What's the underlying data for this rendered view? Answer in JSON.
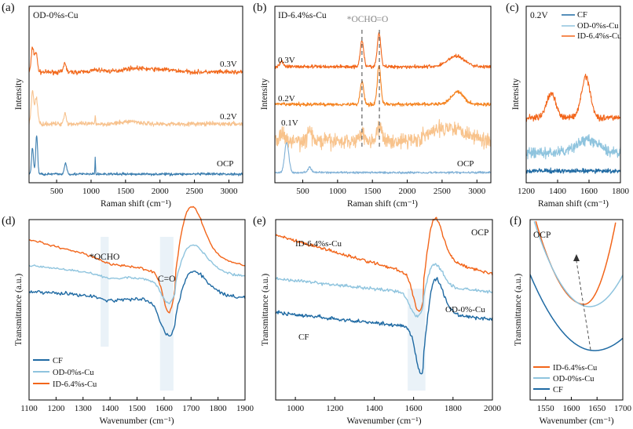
{
  "colors": {
    "cf": "#1f6aa3",
    "od": "#8fc4de",
    "id": "#f2651a",
    "od_a": "#3d7fb0",
    "od_b": "#f7c28e",
    "od_c": "#f26a1e",
    "id_ocp": "#7fb0d6",
    "id_01": "#f8c38c",
    "id_02": "#f5821e",
    "id_03": "#f26518",
    "band": "#dceaf4",
    "dash": "#555555"
  },
  "chart_data": [
    {
      "panel_label": "(a)",
      "type": "line",
      "title": "OD-0%s-Cu",
      "xlabel": "Raman shift (cm⁻¹)",
      "ylabel": "Intensity",
      "xlim": [
        100,
        3200
      ],
      "x_ticks": [
        500,
        1000,
        1500,
        2000,
        2500,
        3000
      ],
      "x_tick_labels": [
        "500",
        "1000",
        "1500",
        "2000",
        "2500",
        "3000"
      ],
      "series": [
        {
          "name": "0.3V",
          "peaks": [
            [
              150,
              0.55,
              18
            ],
            [
              200,
              0.45,
              20
            ],
            [
              620,
              0.22,
              18
            ],
            [
              1100,
              0.05,
              100
            ],
            [
              1600,
              0.08,
              160
            ],
            [
              2000,
              0.06,
              220
            ]
          ],
          "noise": 0.05
        },
        {
          "name": "0.2V",
          "peaks": [
            [
              150,
              0.75,
              18
            ],
            [
              205,
              0.6,
              20
            ],
            [
              620,
              0.25,
              18
            ],
            [
              1060,
              0.2,
              5
            ],
            [
              1580,
              0.06,
              120
            ]
          ],
          "noise": 0.05
        },
        {
          "name": "OCP",
          "peaks": [
            [
              150,
              0.6,
              14
            ],
            [
              210,
              0.9,
              14
            ],
            [
              630,
              0.25,
              18
            ],
            [
              1060,
              0.4,
              4
            ]
          ],
          "noise": 0.03
        }
      ]
    },
    {
      "panel_label": "(b)",
      "type": "line",
      "title": "ID-6.4%s-Cu",
      "xlabel": "Raman shift (cm⁻¹)",
      "ylabel": "Intensity",
      "xlim": [
        100,
        3200
      ],
      "x_ticks": [
        500,
        1000,
        1500,
        2000,
        2500,
        3000
      ],
      "x_tick_labels": [
        "500",
        "1000",
        "1500",
        "2000",
        "2500",
        "3000"
      ],
      "annotations": [
        {
          "text": "*OCHO",
          "x": 1350
        },
        {
          "text": "C=O",
          "x": 1600
        }
      ],
      "series": [
        {
          "name": "0.3V",
          "peaks": [
            [
              1350,
              0.75,
              25
            ],
            [
              1595,
              0.95,
              25
            ],
            [
              2700,
              0.3,
              120
            ],
            [
              200,
              0.15,
              25
            ]
          ],
          "noise": 0.05
        },
        {
          "name": "0.2V",
          "peaks": [
            [
              1350,
              0.65,
              25
            ],
            [
              1595,
              1.1,
              25
            ],
            [
              2720,
              0.35,
              90
            ]
          ],
          "noise": 0.05
        },
        {
          "name": "0.1V",
          "peaks": [
            [
              200,
              0.3,
              25
            ],
            [
              600,
              0.3,
              30
            ],
            [
              1350,
              0.25,
              40
            ],
            [
              1600,
              0.35,
              40
            ],
            [
              2600,
              0.4,
              250
            ]
          ],
          "noise": 0.22
        },
        {
          "name": "OCP",
          "peaks": [
            [
              270,
              0.85,
              30
            ],
            [
              600,
              0.15,
              25
            ]
          ],
          "noise": 0.03
        }
      ]
    },
    {
      "panel_label": "(c)",
      "type": "line",
      "title": "0.2V",
      "xlabel": "Raman shift (cm⁻¹)",
      "ylabel": "Intensity",
      "xlim": [
        1200,
        1800
      ],
      "x_ticks": [
        1200,
        1400,
        1600,
        1800
      ],
      "x_tick_labels": [
        "1200",
        "1400",
        "1600",
        "1800"
      ],
      "legend": [
        "CF",
        "OD-0%s-Cu",
        "ID-6.4%s-Cu"
      ],
      "series": [
        {
          "name": "ID-6.4%s-Cu",
          "peaks": [
            [
              1360,
              0.55,
              30
            ],
            [
              1580,
              0.95,
              28
            ]
          ],
          "noise": 0.07
        },
        {
          "name": "OD-0%s-Cu",
          "peaks": [
            [
              1590,
              0.3,
              70
            ]
          ],
          "noise": 0.12
        },
        {
          "name": "CF",
          "peaks": [],
          "noise": 0.05
        }
      ]
    },
    {
      "panel_label": "(d)",
      "type": "line",
      "xlabel": "Wavenumber (cm⁻¹)",
      "ylabel": "Transmittance (a.u.)",
      "xlim": [
        1100,
        1900
      ],
      "x_ticks": [
        1100,
        1200,
        1300,
        1400,
        1500,
        1600,
        1700,
        1800,
        1900
      ],
      "x_tick_labels": [
        "1100",
        "1200",
        "1300",
        "1400",
        "1500",
        "1600",
        "1700",
        "1800",
        "1900"
      ],
      "annotations": [
        {
          "text": "*OCHO",
          "x": 1390
        },
        {
          "text": "C=O",
          "x": 1605
        }
      ],
      "legend": [
        "CF",
        "OD-0%s-Cu",
        "ID-6.4%s-Cu"
      ],
      "series": [
        {
          "name": "ID-6.4%s-Cu"
        },
        {
          "name": "OD-0%s-Cu"
        },
        {
          "name": "CF"
        }
      ]
    },
    {
      "panel_label": "(e)",
      "type": "line",
      "title": "OCP",
      "xlabel": "Wavenumber (cm⁻¹)",
      "ylabel": "Transmittance (a.u.)",
      "xlim": [
        900,
        2000
      ],
      "x_ticks": [
        1000,
        1200,
        1400,
        1600,
        1800,
        2000
      ],
      "x_tick_labels": [
        "1000",
        "1200",
        "1400",
        "1600",
        "1800",
        "2000"
      ],
      "curve_labels": [
        "ID-6.4%s-Cu",
        "OD-0%-Cu",
        "CF"
      ],
      "series": [
        {
          "name": "ID-6.4%s-Cu"
        },
        {
          "name": "OD-0%-Cu"
        },
        {
          "name": "CF"
        }
      ]
    },
    {
      "panel_label": "(f)",
      "type": "line",
      "title": "OCP",
      "xlabel": "Wavenumber (cm⁻¹)",
      "ylabel": "Transmittance (a.u.)",
      "xlim": [
        1520,
        1700
      ],
      "x_ticks": [
        1550,
        1600,
        1650,
        1700
      ],
      "x_tick_labels": [
        "1550",
        "1600",
        "1650",
        "1700"
      ],
      "legend": [
        "ID-6.4%s-Cu",
        "OD-0%s-Cu",
        "CF"
      ],
      "series": [
        {
          "name": "ID-6.4%s-Cu",
          "min_x": 1625
        },
        {
          "name": "OD-0%s-Cu",
          "min_x": 1635
        },
        {
          "name": "CF",
          "min_x": 1645
        }
      ]
    }
  ]
}
